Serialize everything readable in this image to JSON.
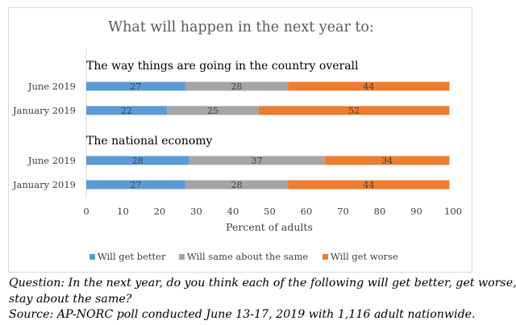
{
  "chart_data": {
    "type": "bar",
    "stacked": true,
    "orientation": "horizontal",
    "title": "What will happen in the next year to:",
    "xlabel": "Percent of adults",
    "xlim": [
      0,
      100
    ],
    "x_ticks": [
      0,
      10,
      20,
      30,
      40,
      50,
      60,
      70,
      80,
      90,
      100
    ],
    "grid": false,
    "legend_position": "bottom",
    "series": [
      {
        "name": "Will get better",
        "color": "#5b9bd5"
      },
      {
        "name": "Will same about the same",
        "color": "#a5a5a5"
      },
      {
        "name": "Will get worse",
        "color": "#ed7d31"
      }
    ],
    "groups": [
      {
        "title": "The way things are going in the country overall",
        "rows": [
          {
            "label": "June 2019",
            "values": [
              27,
              28,
              44
            ]
          },
          {
            "label": "January 2019",
            "values": [
              22,
              25,
              52
            ]
          }
        ]
      },
      {
        "title": "The national economy",
        "rows": [
          {
            "label": "June 2019",
            "values": [
              28,
              37,
              34
            ]
          },
          {
            "label": "January 2019",
            "values": [
              27,
              28,
              44
            ]
          }
        ]
      }
    ]
  },
  "notes": {
    "question_line1": "Question:  In the next year, do you think each of the following will get better, get worse, or",
    "question_line2": "stay about the same?",
    "source": "Source: AP-NORC poll conducted June 13-17, 2019 with 1,116 adult nationwide."
  }
}
